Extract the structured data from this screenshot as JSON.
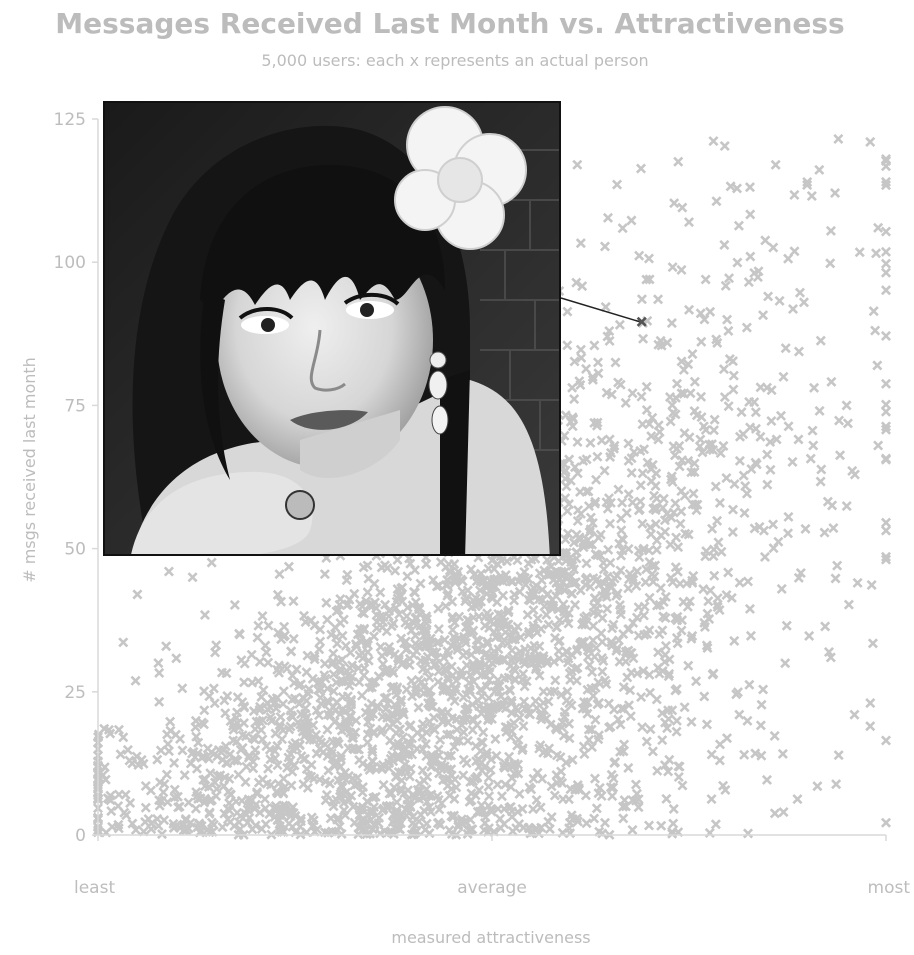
{
  "chart_data": {
    "type": "scatter",
    "title": "Messages Received Last Month vs. Attractiveness",
    "subtitle": "5,000 users: each x represents an actual person",
    "xlabel": "measured attractiveness",
    "ylabel": "# msgs received last month",
    "x_tick_labels": [
      "least",
      "average",
      "most"
    ],
    "y_ticks": [
      0,
      25,
      50,
      75,
      100,
      125
    ],
    "ylim": [
      0,
      125
    ],
    "xlim": [
      0,
      1
    ],
    "grid": false,
    "legend": "none",
    "colors": {
      "points": "#c6c6c6",
      "highlight": "#555555",
      "text": "#bcbcbc",
      "axis": "#d9d9d9"
    },
    "highlighted_point": {
      "x": 0.69,
      "y": 89.6
    },
    "sample_points": [
      [
        0.0,
        3
      ],
      [
        0.04,
        13
      ],
      [
        0.05,
        42
      ],
      [
        0.09,
        46
      ],
      [
        0.12,
        45
      ],
      [
        0.18,
        35
      ],
      [
        0.26,
        24
      ],
      [
        0.35,
        18
      ],
      [
        0.44,
        12
      ],
      [
        0.5,
        30
      ],
      [
        0.57,
        48
      ],
      [
        0.62,
        60
      ],
      [
        0.66,
        79
      ],
      [
        0.7,
        97
      ],
      [
        0.75,
        107
      ],
      [
        0.8,
        88
      ],
      [
        0.86,
        117
      ],
      [
        0.9,
        114
      ],
      [
        0.95,
        75
      ],
      [
        0.98,
        121
      ],
      [
        0.99,
        106
      ],
      [
        0.99,
        68
      ],
      [
        0.98,
        19
      ],
      [
        0.96,
        21
      ],
      [
        0.93,
        31
      ],
      [
        0.87,
        4
      ],
      [
        0.82,
        14
      ],
      [
        0.78,
        28
      ],
      [
        0.73,
        2
      ],
      [
        0.67,
        5
      ]
    ],
    "point_count": 5000
  },
  "inset_image": {
    "name": "profile-photo",
    "description_shown": false
  }
}
